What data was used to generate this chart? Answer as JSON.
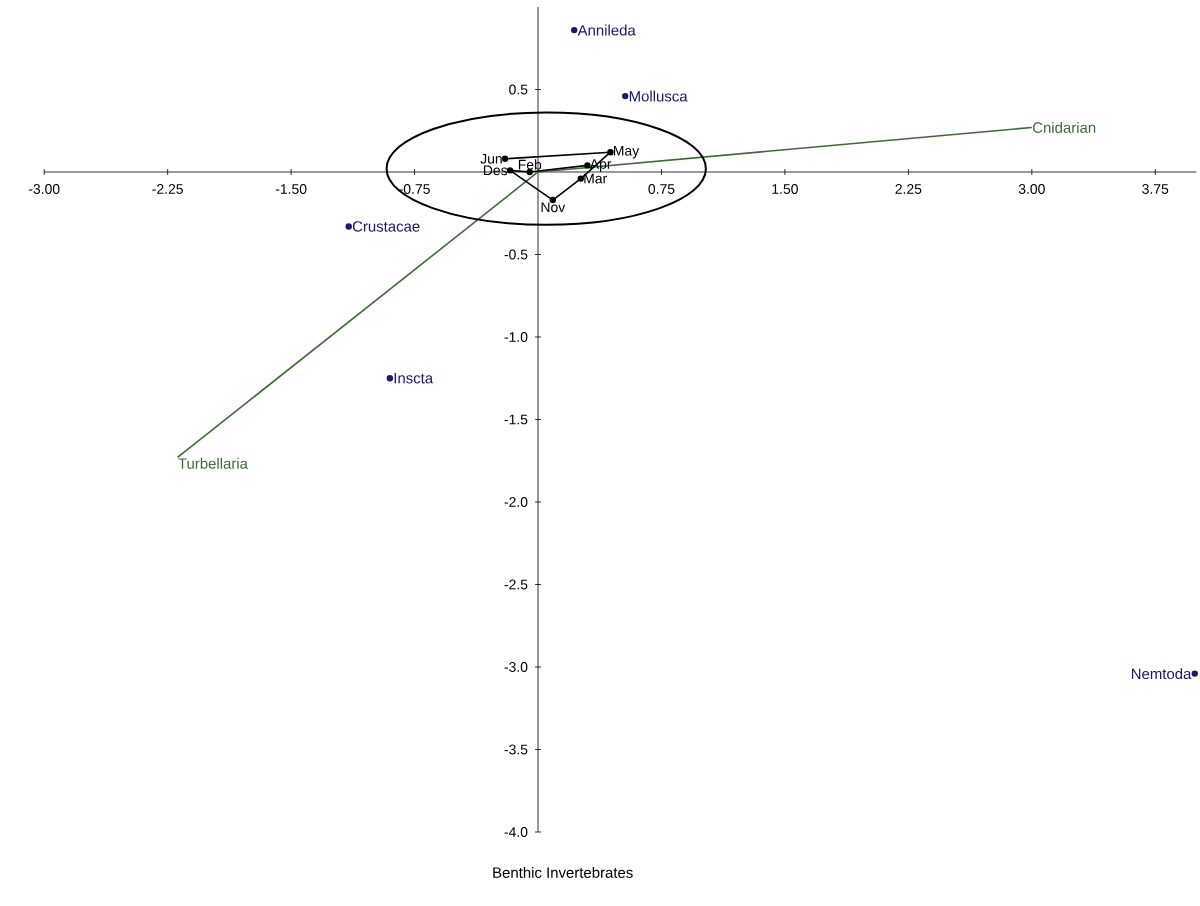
{
  "chart_data": {
    "type": "scatter",
    "xlabel": "Benthic Invertebrates",
    "xlim": [
      -3.0,
      4.0
    ],
    "ylim": [
      -4.0,
      1.0
    ],
    "xticks": [
      {
        "value": -3.0,
        "label": "-3.00"
      },
      {
        "value": -2.25,
        "label": "-2.25"
      },
      {
        "value": -1.5,
        "label": "-1.50"
      },
      {
        "value": -0.75,
        "label": "-0.75"
      },
      {
        "value": 0.75,
        "label": "0.75"
      },
      {
        "value": 1.5,
        "label": "1.50"
      },
      {
        "value": 2.25,
        "label": "2.25"
      },
      {
        "value": 3.0,
        "label": "3.00"
      },
      {
        "value": 3.75,
        "label": "3.75"
      }
    ],
    "yticks": [
      0.5,
      -0.5,
      {
        "value": -1.0,
        "label": "-1.0"
      },
      -1.5,
      {
        "value": -2.0,
        "label": "-2.0"
      },
      -2.5,
      {
        "value": -3.0,
        "label": "-3.0"
      },
      -3.5,
      {
        "value": -4.0,
        "label": "-4.0"
      }
    ],
    "grid": false,
    "series": [
      {
        "name": "Annileda",
        "type": "scatter",
        "marker": "circle",
        "color": "#1a1a6e",
        "x": [
          0.22
        ],
        "values": [
          0.86
        ]
      },
      {
        "name": "Mollusca",
        "type": "scatter",
        "marker": "circle",
        "color": "#1a1a6e",
        "x": [
          0.53
        ],
        "values": [
          0.46
        ]
      },
      {
        "name": "Crustacae",
        "type": "scatter",
        "marker": "circle",
        "color": "#1a1a6e",
        "x": [
          -1.15
        ],
        "values": [
          -0.33
        ]
      },
      {
        "name": "Inscta",
        "type": "scatter",
        "marker": "circle",
        "color": "#1a1a6e",
        "x": [
          -0.9
        ],
        "values": [
          -1.25
        ]
      },
      {
        "name": "Nemtoda",
        "type": "scatter",
        "marker": "circle",
        "color": "#1a1a6e",
        "x": [
          3.99
        ],
        "values": [
          -3.04
        ]
      },
      {
        "name": "Cnidarian",
        "type": "line",
        "marker": "none",
        "color": "#3d6b35",
        "x": [
          0,
          3.0
        ],
        "values": [
          0,
          0.27
        ]
      },
      {
        "name": "Turbellaria",
        "type": "line",
        "marker": "none",
        "color": "#3d6b35",
        "x": [
          0,
          -2.19
        ],
        "values": [
          0,
          -1.73
        ]
      },
      {
        "type": "line",
        "marker": "none",
        "color": "#000000",
        "x": [
          -0.2,
          0.44,
          0.26,
          0.09,
          -0.17,
          -0.05,
          0.3
        ],
        "values": [
          0.08,
          0.12,
          -0.04,
          -0.17,
          0.01,
          0.0,
          0.04
        ]
      },
      {
        "name": "Jun",
        "type": "scatter",
        "marker": "circle",
        "color": "#000000",
        "x": [
          -0.2
        ],
        "values": [
          0.08
        ]
      },
      {
        "name": "Des",
        "type": "scatter",
        "marker": "circle",
        "color": "#000000",
        "x": [
          -0.17
        ],
        "values": [
          0.01
        ]
      },
      {
        "name": "Feb",
        "type": "scatter",
        "marker": "circle",
        "color": "#000000",
        "x": [
          -0.05
        ],
        "values": [
          0.0
        ]
      },
      {
        "name": "Apr",
        "type": "scatter",
        "marker": "circle",
        "color": "#000000",
        "x": [
          0.3
        ],
        "values": [
          0.04
        ]
      },
      {
        "name": "May",
        "type": "scatter",
        "marker": "circle",
        "color": "#000000",
        "x": [
          0.44
        ],
        "values": [
          0.12
        ]
      },
      {
        "name": "Mar",
        "type": "scatter",
        "marker": "circle",
        "color": "#000000",
        "x": [
          0.26
        ],
        "values": [
          -0.04
        ]
      },
      {
        "name": "Nov",
        "type": "scatter",
        "marker": "circle",
        "color": "#000000",
        "x": [
          0.09
        ],
        "values": [
          -0.17
        ]
      }
    ]
  }
}
